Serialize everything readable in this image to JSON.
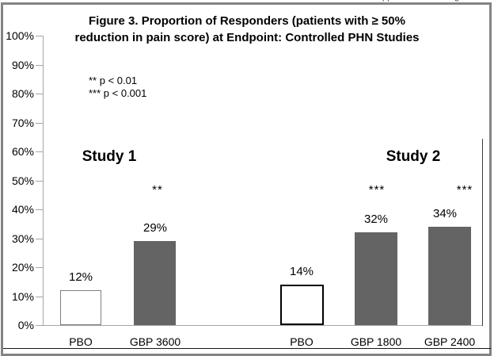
{
  "page": {
    "clipped_fragments": [
      "pp",
      "g"
    ]
  },
  "figure": {
    "title_line1": "Figure 3. Proportion of Responders (patients with ≥ 50%",
    "title_line2": "reduction in pain score) at Endpoint: Controlled PHN Studies",
    "legend_line1": "** p < 0.01",
    "legend_line2": "*** p < 0.001"
  },
  "colors": {
    "bar_fill_gray": "#646464",
    "pbo_fill": "#ffffff",
    "axis": "#a6a6a6",
    "frame_border": "#848484"
  },
  "chart_data": {
    "type": "bar",
    "title": "Figure 3. Proportion of Responders (patients with ≥ 50% reduction in pain score) at Endpoint: Controlled PHN Studies",
    "xlabel": "",
    "ylabel": "",
    "ylim": [
      0,
      100
    ],
    "ytick_step": 10,
    "ytick_labels": [
      "0%",
      "10%",
      "20%",
      "30%",
      "40%",
      "50%",
      "60%",
      "70%",
      "80%",
      "90%",
      "100%"
    ],
    "grid": false,
    "legend_position": "upper-left-inside",
    "footnotes": [
      "** p < 0.01",
      "*** p < 0.001"
    ],
    "groups": [
      {
        "name": "Study 1",
        "bars": [
          {
            "category": "PBO",
            "value": 12,
            "value_label": "12%",
            "significance": "",
            "fill": "#ffffff",
            "border": "#7f7f7f",
            "border_px": 1
          },
          {
            "category": "GBP 3600",
            "value": 29,
            "value_label": "29%",
            "significance": "**",
            "fill": "#646464",
            "border": "#646464",
            "border_px": 0
          }
        ]
      },
      {
        "name": "Study 2",
        "bars": [
          {
            "category": "PBO",
            "value": 14,
            "value_label": "14%",
            "significance": "",
            "fill": "#ffffff",
            "border": "#000000",
            "border_px": 2
          },
          {
            "category": "GBP 1800",
            "value": 32,
            "value_label": "32%",
            "significance": "***",
            "fill": "#646464",
            "border": "#646464",
            "border_px": 0
          },
          {
            "category": "GBP 2400",
            "value": 34,
            "value_label": "34%",
            "significance": "***",
            "fill": "#646464",
            "border": "#646464",
            "border_px": 0
          }
        ]
      }
    ]
  }
}
